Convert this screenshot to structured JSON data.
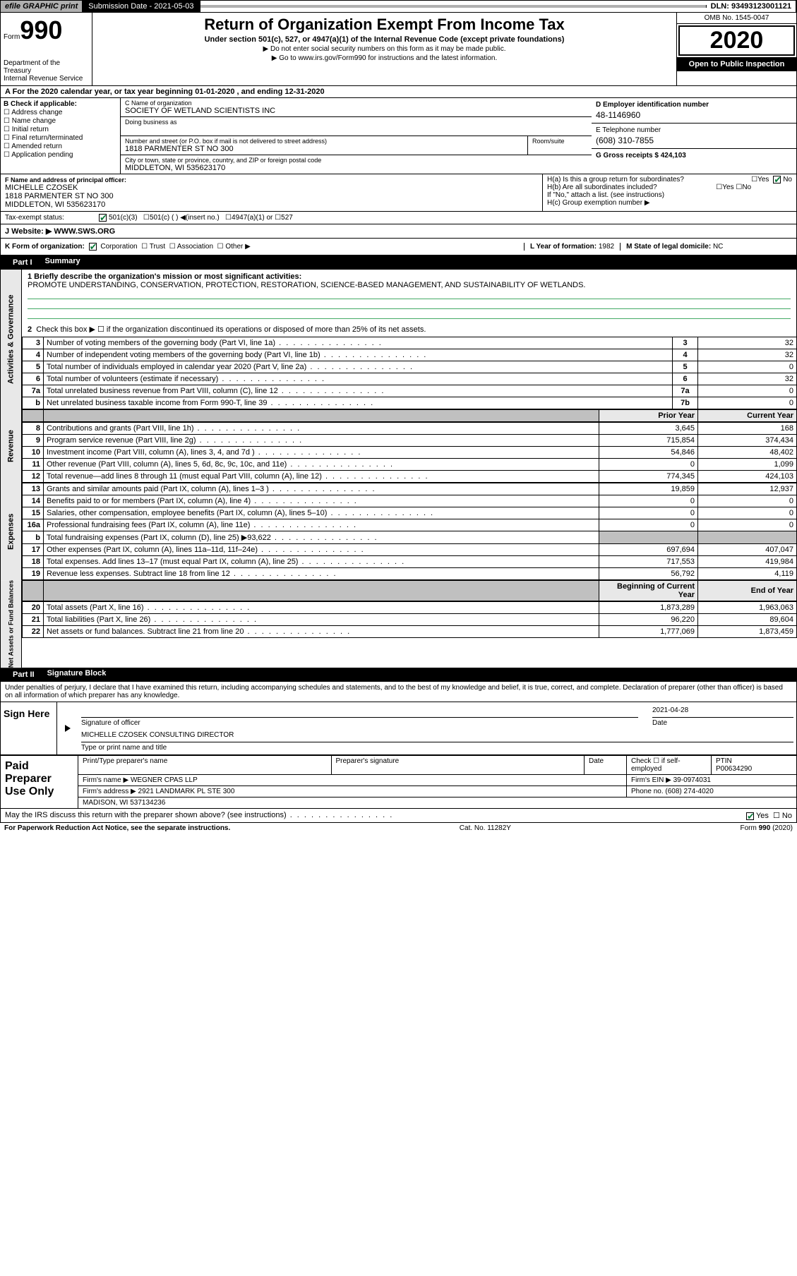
{
  "topbar": {
    "efile": "efile GRAPHIC print",
    "sub_date_label": "Submission Date - 2021-05-03",
    "dln": "DLN: 93493123001121"
  },
  "header": {
    "form_prefix": "Form",
    "form_number": "990",
    "title": "Return of Organization Exempt From Income Tax",
    "subtitle": "Under section 501(c), 527, or 4947(a)(1) of the Internal Revenue Code (except private foundations)",
    "ssn_note": "▶ Do not enter social security numbers on this form as it may be made public.",
    "goto": "▶ Go to www.irs.gov/Form990 for instructions and the latest information.",
    "omb": "OMB No. 1545-0047",
    "year": "2020",
    "public": "Open to Public Inspection",
    "dept": "Department of the Treasury\nInternal Revenue Service"
  },
  "period": "A For the 2020 calendar year, or tax year beginning 01-01-2020   , and ending 12-31-2020",
  "boxB": {
    "label": "B Check if applicable:",
    "items": [
      "Address change",
      "Name change",
      "Initial return",
      "Final return/terminated",
      "Amended return",
      "Application pending"
    ]
  },
  "boxC": {
    "name_label": "C Name of organization",
    "name": "SOCIETY OF WETLAND SCIENTISTS INC",
    "dba_label": "Doing business as",
    "addr_label": "Number and street (or P.O. box if mail is not delivered to street address)",
    "room_label": "Room/suite",
    "addr": "1818 PARMENTER ST NO 300",
    "city_label": "City or town, state or province, country, and ZIP or foreign postal code",
    "city": "MIDDLETON, WI  535623170"
  },
  "boxD": {
    "label": "D Employer identification number",
    "val": "48-1146960"
  },
  "boxE": {
    "label": "E Telephone number",
    "val": "(608) 310-7855"
  },
  "boxG": {
    "label": "G Gross receipts $ 424,103"
  },
  "boxF": {
    "label": "F  Name and address of principal officer:",
    "name": "MICHELLE CZOSEK",
    "addr1": "1818 PARMENTER ST NO 300",
    "addr2": "MIDDLETON, WI  535623170"
  },
  "boxH": {
    "a": "H(a)  Is this a group return for subordinates?",
    "b": "H(b)  Are all subordinates included?",
    "b_note": "If \"No,\" attach a list. (see instructions)",
    "c": "H(c)  Group exemption number ▶",
    "yes": "Yes",
    "no": "No"
  },
  "taxStatus": {
    "label": "Tax-exempt status:",
    "opts": [
      "501(c)(3)",
      "501(c) (  ) ◀(insert no.)",
      "4947(a)(1) or",
      "527"
    ]
  },
  "website": {
    "label": "J   Website: ▶",
    "val": "WWW.SWS.ORG"
  },
  "formOrg": {
    "k": "K Form of organization:",
    "opts": [
      "Corporation",
      "Trust",
      "Association",
      "Other ▶"
    ],
    "l_label": "L Year of formation: ",
    "l_val": "1982",
    "m_label": "M State of legal domicile: ",
    "m_val": "NC"
  },
  "part1": {
    "label": "Part I",
    "title": "Summary"
  },
  "mission": {
    "q": "1  Briefly describe the organization's mission or most significant activities:",
    "text": "PROMOTE UNDERSTANDING, CONSERVATION, PROTECTION, RESTORATION, SCIENCE-BASED MANAGEMENT, AND SUSTAINABILITY OF WETLANDS."
  },
  "governance": {
    "side": "Activities & Governance",
    "line2": "Check this box ▶ ☐  if the organization discontinued its operations or disposed of more than 25% of its net assets.",
    "rows": [
      {
        "n": "3",
        "desc": "Number of voting members of the governing body (Part VI, line 1a)",
        "box": "3",
        "val": "32"
      },
      {
        "n": "4",
        "desc": "Number of independent voting members of the governing body (Part VI, line 1b)",
        "box": "4",
        "val": "32"
      },
      {
        "n": "5",
        "desc": "Total number of individuals employed in calendar year 2020 (Part V, line 2a)",
        "box": "5",
        "val": "0"
      },
      {
        "n": "6",
        "desc": "Total number of volunteers (estimate if necessary)",
        "box": "6",
        "val": "32"
      },
      {
        "n": "7a",
        "desc": "Total unrelated business revenue from Part VIII, column (C), line 12",
        "box": "7a",
        "val": "0"
      },
      {
        "n": "b",
        "desc": "Net unrelated business taxable income from Form 990-T, line 39",
        "box": "7b",
        "val": "0"
      }
    ]
  },
  "colHdrs": {
    "prior": "Prior Year",
    "current": "Current Year"
  },
  "revenue": {
    "side": "Revenue",
    "rows": [
      {
        "n": "8",
        "desc": "Contributions and grants (Part VIII, line 1h)",
        "p": "3,645",
        "c": "168"
      },
      {
        "n": "9",
        "desc": "Program service revenue (Part VIII, line 2g)",
        "p": "715,854",
        "c": "374,434"
      },
      {
        "n": "10",
        "desc": "Investment income (Part VIII, column (A), lines 3, 4, and 7d )",
        "p": "54,846",
        "c": "48,402"
      },
      {
        "n": "11",
        "desc": "Other revenue (Part VIII, column (A), lines 5, 6d, 8c, 9c, 10c, and 11e)",
        "p": "0",
        "c": "1,099"
      },
      {
        "n": "12",
        "desc": "Total revenue—add lines 8 through 11 (must equal Part VIII, column (A), line 12)",
        "p": "774,345",
        "c": "424,103"
      }
    ]
  },
  "expenses": {
    "side": "Expenses",
    "rows": [
      {
        "n": "13",
        "desc": "Grants and similar amounts paid (Part IX, column (A), lines 1–3 )",
        "p": "19,859",
        "c": "12,937"
      },
      {
        "n": "14",
        "desc": "Benefits paid to or for members (Part IX, column (A), line 4)",
        "p": "0",
        "c": "0"
      },
      {
        "n": "15",
        "desc": "Salaries, other compensation, employee benefits (Part IX, column (A), lines 5–10)",
        "p": "0",
        "c": "0"
      },
      {
        "n": "16a",
        "desc": "Professional fundraising fees (Part IX, column (A), line 11e)",
        "p": "0",
        "c": "0"
      },
      {
        "n": "b",
        "desc": "Total fundraising expenses (Part IX, column (D), line 25) ▶93,622",
        "p": "",
        "c": "",
        "shaded": true
      },
      {
        "n": "17",
        "desc": "Other expenses (Part IX, column (A), lines 11a–11d, 11f–24e)",
        "p": "697,694",
        "c": "407,047"
      },
      {
        "n": "18",
        "desc": "Total expenses. Add lines 13–17 (must equal Part IX, column (A), line 25)",
        "p": "717,553",
        "c": "419,984"
      },
      {
        "n": "19",
        "desc": "Revenue less expenses. Subtract line 18 from line 12",
        "p": "56,792",
        "c": "4,119"
      }
    ]
  },
  "netHdrs": {
    "begin": "Beginning of Current Year",
    "end": "End of Year"
  },
  "netassets": {
    "side": "Net Assets or Fund Balances",
    "rows": [
      {
        "n": "20",
        "desc": "Total assets (Part X, line 16)",
        "p": "1,873,289",
        "c": "1,963,063"
      },
      {
        "n": "21",
        "desc": "Total liabilities (Part X, line 26)",
        "p": "96,220",
        "c": "89,604"
      },
      {
        "n": "22",
        "desc": "Net assets or fund balances. Subtract line 21 from line 20",
        "p": "1,777,069",
        "c": "1,873,459"
      }
    ]
  },
  "part2": {
    "label": "Part II",
    "title": "Signature Block"
  },
  "penalties": "Under penalties of perjury, I declare that I have examined this return, including accompanying schedules and statements, and to the best of my knowledge and belief, it is true, correct, and complete. Declaration of preparer (other than officer) is based on all information of which preparer has any knowledge.",
  "sign": {
    "side": "Sign Here",
    "sig_label": "Signature of officer",
    "date_label": "Date",
    "date": "2021-04-28",
    "name": "MICHELLE CZOSEK CONSULTING DIRECTOR",
    "name_label": "Type or print name and title"
  },
  "prep": {
    "side": "Paid Preparer Use Only",
    "h1": "Print/Type preparer's name",
    "h2": "Preparer's signature",
    "h3": "Date",
    "h4": "Check ☐ if self-employed",
    "ptin_label": "PTIN",
    "ptin": "P00634290",
    "firm_label": "Firm's name   ▶",
    "firm": "WEGNER CPAS LLP",
    "ein_label": "Firm's EIN ▶",
    "ein": "39-0974031",
    "addr_label": "Firm's address ▶",
    "addr1": "2921 LANDMARK PL STE 300",
    "addr2": "MADISON, WI  537134236",
    "phone_label": "Phone no.",
    "phone": "(608) 274-4020"
  },
  "discuss": "May the IRS discuss this return with the preparer shown above? (see instructions)",
  "footer": {
    "left": "For Paperwork Reduction Act Notice, see the separate instructions.",
    "mid": "Cat. No. 11282Y",
    "right": "Form 990 (2020)"
  }
}
